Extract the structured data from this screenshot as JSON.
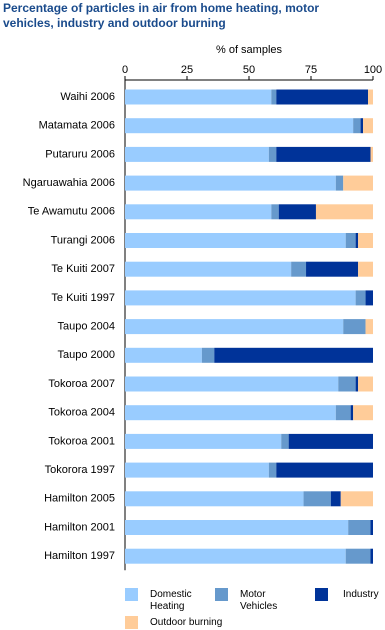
{
  "chart_data": {
    "type": "stacked-bar-horizontal",
    "title": "Percentage of particles in air from home heating, motor vehicles, industry and outdoor burning",
    "xlabel": "% of samples",
    "categories": [
      "Waihi 2006",
      "Matamata 2006",
      "Putaruru 2006",
      "Ngaruawahia 2006",
      "Te Awamutu 2006",
      "Turangi 2006",
      "Te Kuiti 2007",
      "Te Kuiti 1997",
      "Taupo 2004",
      "Taupo 2000",
      "Tokoroa 2007",
      "Tokoroa 2004",
      "Tokoroa 2001",
      "Tokorora 1997",
      "Hamilton 2005",
      "Hamilton 2001",
      "Hamilton 1997"
    ],
    "series": [
      {
        "name": "Domestic Heating",
        "color": "#99ccff",
        "values": [
          59,
          92,
          58,
          85,
          59,
          89,
          67,
          93,
          88,
          31,
          86,
          85,
          63,
          58,
          72,
          90,
          89
        ]
      },
      {
        "name": "Motor Vehicles",
        "color": "#6699cc",
        "values": [
          2,
          3,
          3,
          3,
          3,
          4,
          6,
          4,
          9,
          5,
          7,
          6,
          3,
          3,
          11,
          9,
          10
        ]
      },
      {
        "name": "Industry",
        "color": "#003399",
        "values": [
          37,
          1,
          38,
          0,
          15,
          1,
          21,
          3,
          0,
          64,
          1,
          1,
          34,
          39,
          4,
          1,
          1
        ]
      },
      {
        "name": "Outdoor burning",
        "color": "#ffcc99",
        "values": [
          2,
          4,
          1,
          12,
          23,
          6,
          6,
          0,
          3,
          0,
          6,
          8,
          0,
          0,
          13,
          0,
          0
        ]
      }
    ],
    "xlim": [
      0,
      100
    ],
    "xticks": [
      0,
      25,
      50,
      75,
      100
    ]
  }
}
